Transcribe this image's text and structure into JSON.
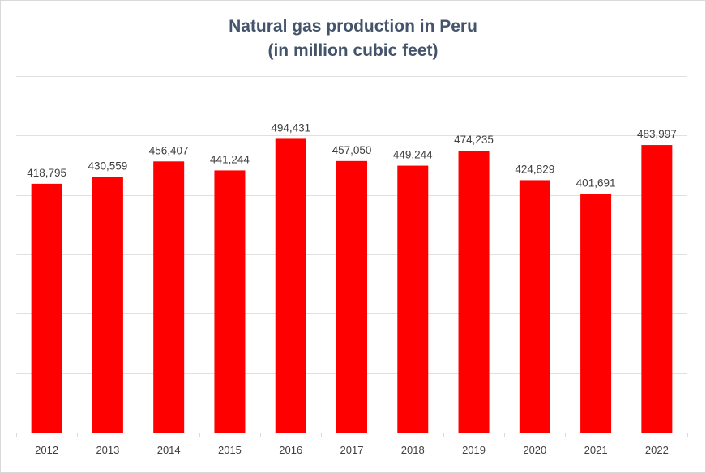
{
  "chart_data": {
    "type": "bar",
    "title": "Natural gas production in Peru",
    "subtitle": "(in million cubic feet)",
    "categories": [
      "2012",
      "2013",
      "2014",
      "2015",
      "2016",
      "2017",
      "2018",
      "2019",
      "2020",
      "2021",
      "2022"
    ],
    "values": [
      418795,
      430559,
      456407,
      441244,
      494431,
      457050,
      449244,
      474235,
      424829,
      401691,
      483997
    ],
    "value_labels": [
      "418,795",
      "430,559",
      "456,407",
      "441,244",
      "494,431",
      "457,050",
      "449,244",
      "474,235",
      "424,829",
      "401,691",
      "483,997"
    ],
    "xlabel": "",
    "ylabel": "",
    "ylim": [
      0,
      600000
    ],
    "y_gridline_step": 100000,
    "y_tick_labels_visible": false,
    "grid": true,
    "legend": "none",
    "bar_color": "#ff0000",
    "gridline_color": "#e0e0e0",
    "text_color": "#404040",
    "title_color": "#44546a"
  }
}
